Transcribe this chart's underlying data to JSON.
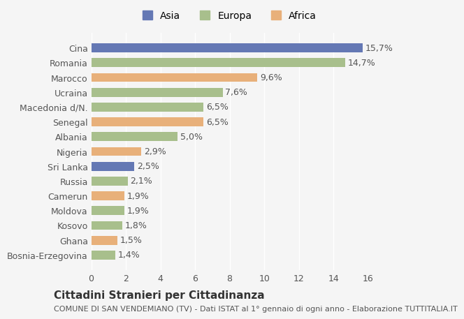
{
  "countries": [
    "Bosnia-Erzegovina",
    "Ghana",
    "Kosovo",
    "Moldova",
    "Camerun",
    "Russia",
    "Sri Lanka",
    "Nigeria",
    "Albania",
    "Senegal",
    "Macedonia d/N.",
    "Ucraina",
    "Marocco",
    "Romania",
    "Cina"
  ],
  "values": [
    1.4,
    1.5,
    1.8,
    1.9,
    1.9,
    2.1,
    2.5,
    2.9,
    5.0,
    6.5,
    6.5,
    7.6,
    9.6,
    14.7,
    15.7
  ],
  "continents": [
    "Europa",
    "Africa",
    "Europa",
    "Europa",
    "Africa",
    "Europa",
    "Asia",
    "Africa",
    "Europa",
    "Africa",
    "Europa",
    "Europa",
    "Africa",
    "Europa",
    "Asia"
  ],
  "colors": {
    "Asia": "#6478b4",
    "Europa": "#a8bf8c",
    "Africa": "#e8b07a"
  },
  "legend_labels": [
    "Asia",
    "Europa",
    "Africa"
  ],
  "xlim": [
    0,
    16
  ],
  "xticks": [
    0,
    2,
    4,
    6,
    8,
    10,
    12,
    14,
    16
  ],
  "title": "Cittadini Stranieri per Cittadinanza",
  "subtitle": "COMUNE DI SAN VENDEMIANO (TV) - Dati ISTAT al 1° gennaio di ogni anno - Elaborazione TUTTITALIA.IT",
  "bg_color": "#f5f5f5",
  "bar_height": 0.6,
  "label_fontsize": 9,
  "title_fontsize": 11,
  "subtitle_fontsize": 8
}
